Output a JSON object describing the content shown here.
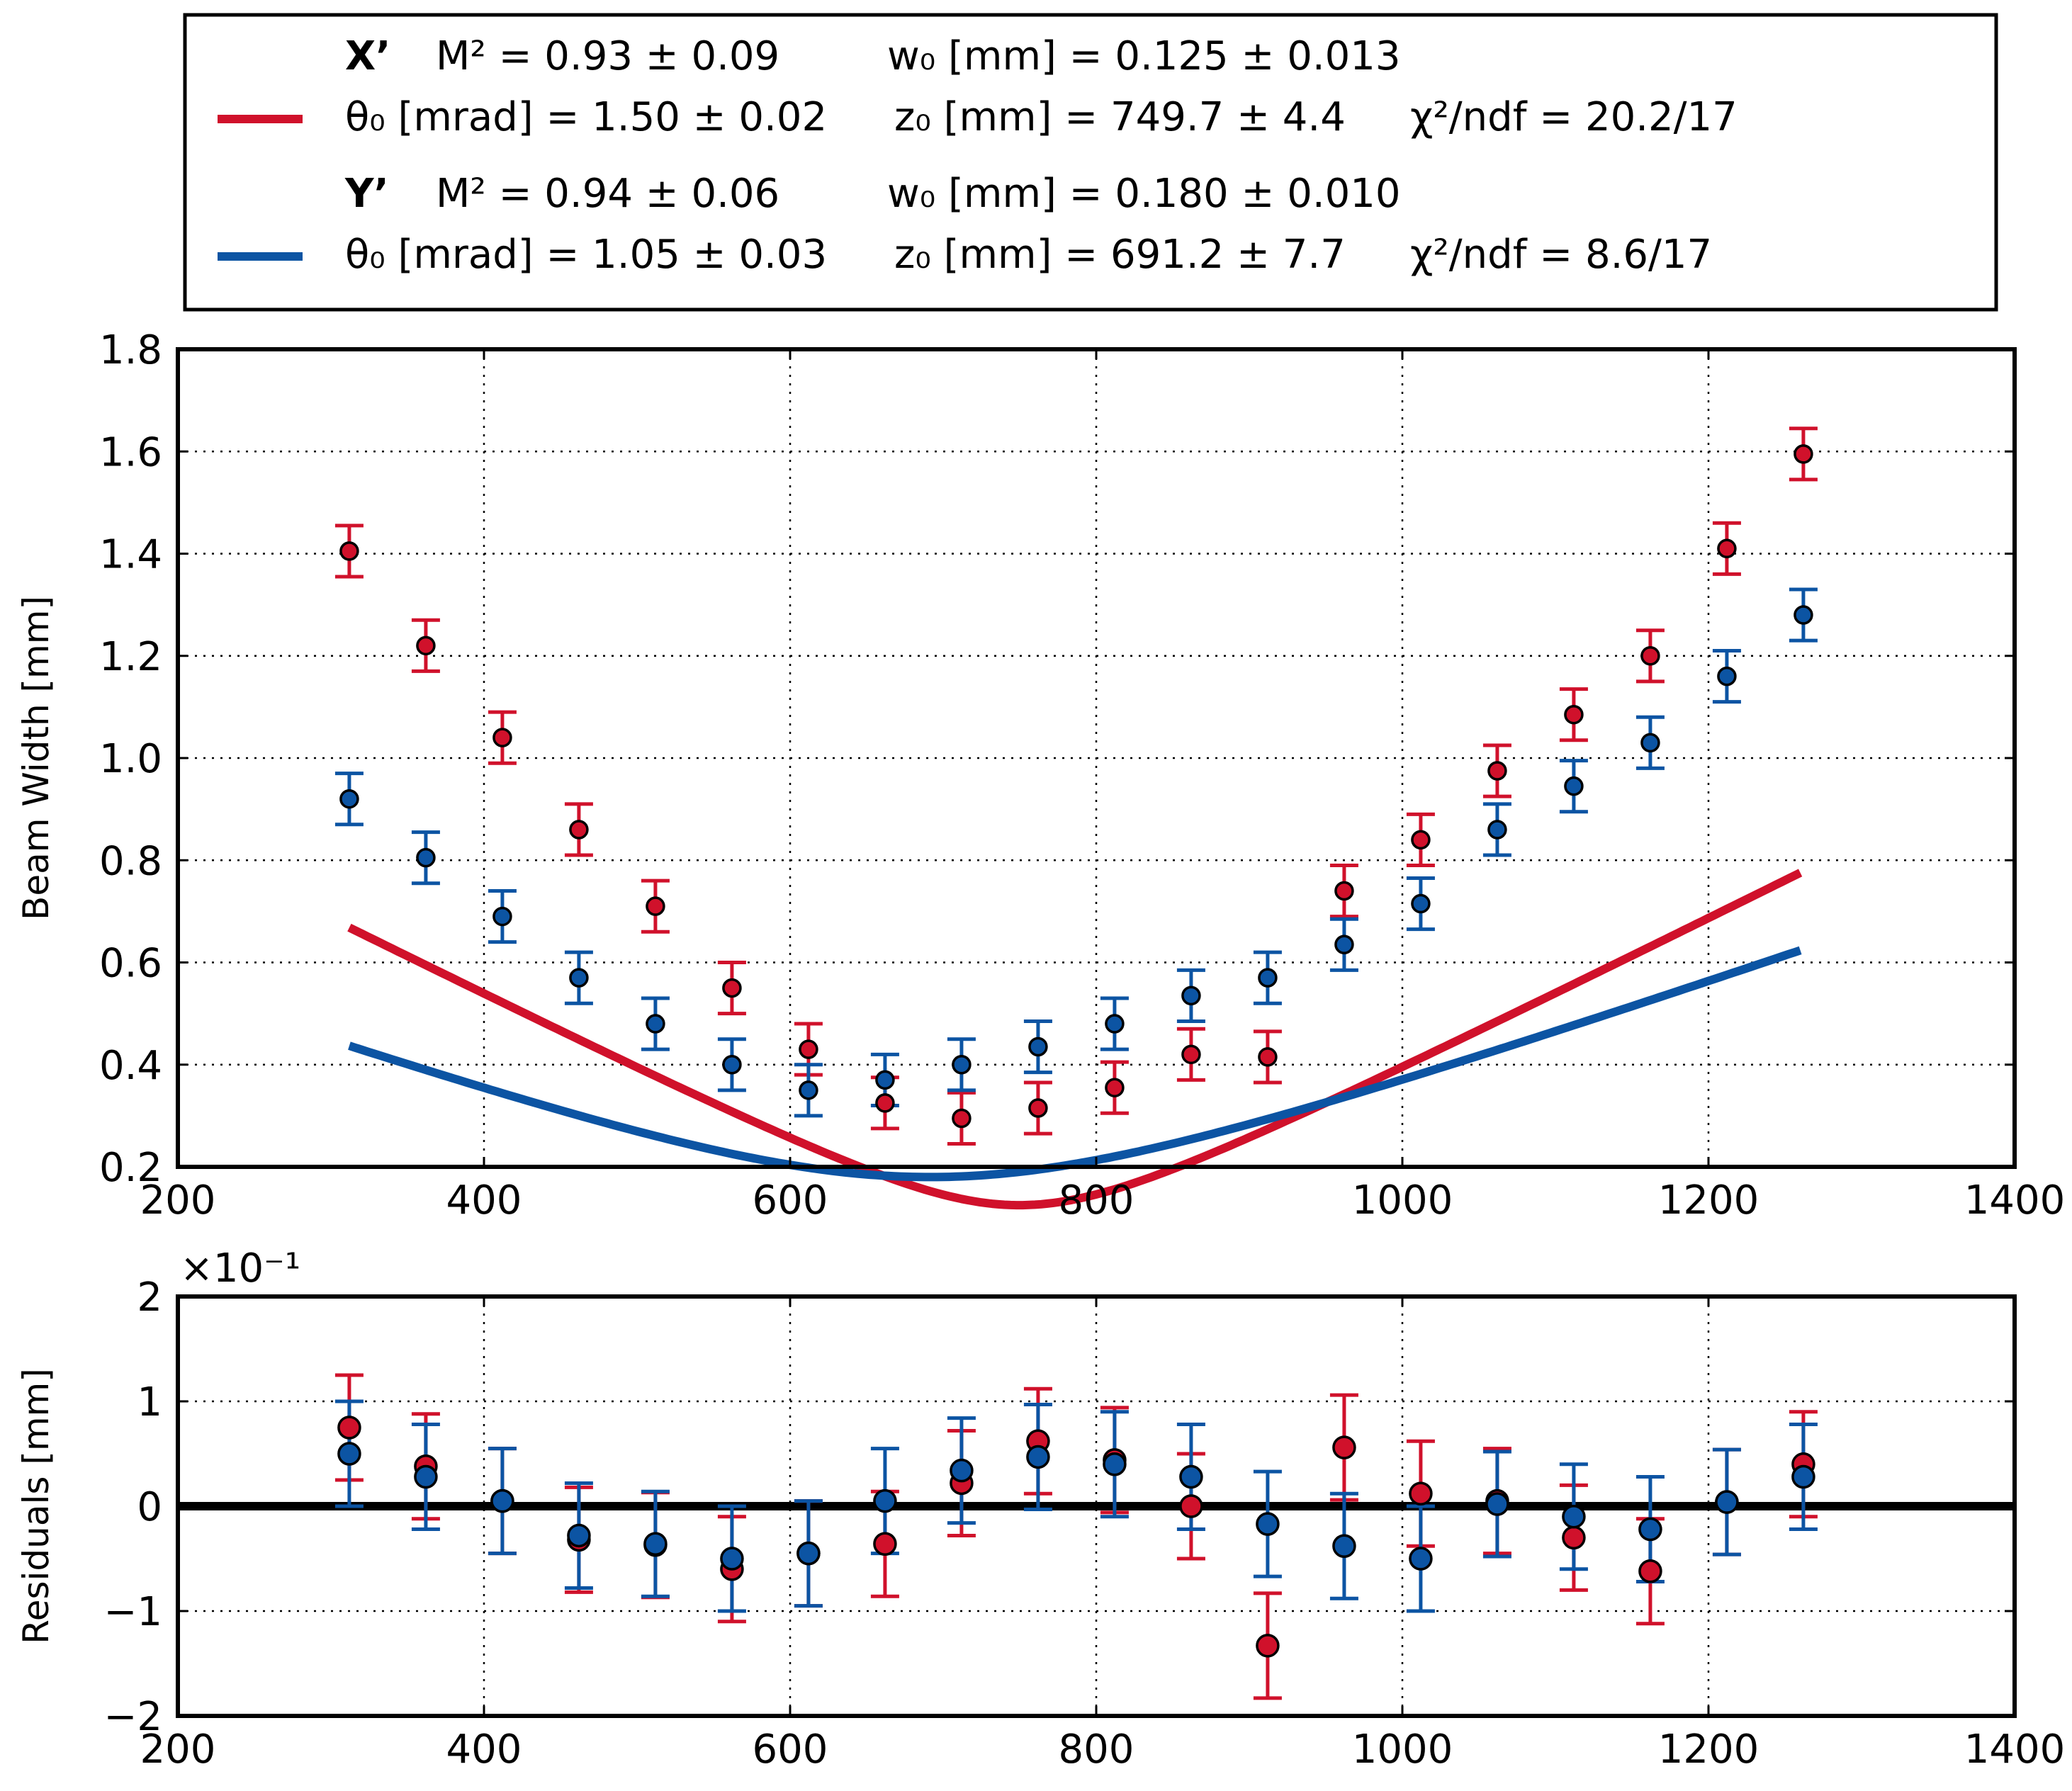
{
  "legend": {
    "x_label": "X’",
    "x_m2": "M² = 0.93 ± 0.09",
    "x_w0": "w₀ [mm] = 0.125 ± 0.013",
    "x_theta": "θ₀ [mrad] = 1.50 ± 0.02",
    "x_z0": "z₀ [mm] = 749.7 ± 4.4",
    "x_chi": "χ²/ndf = 20.2/17",
    "y_label": "Y’",
    "y_m2": "M² = 0.94 ± 0.06",
    "y_w0": "w₀ [mm] = 0.180 ± 0.010",
    "y_theta": "θ₀ [mrad] = 1.05 ± 0.03",
    "y_z0": "z₀ [mm] = 691.2 ± 7.7",
    "y_chi": "χ²/ndf = 8.6/17"
  },
  "colors": {
    "x_series": "#d0112b",
    "y_series": "#0c54a3",
    "grid": "#000000",
    "zero_line": "#000000"
  },
  "chart_data": [
    {
      "type": "scatter",
      "name": "beam-width",
      "title": "",
      "xlabel": "",
      "ylabel": "Beam Width [mm]",
      "xlim": [
        200,
        1400
      ],
      "ylim": [
        0.2,
        1.8
      ],
      "xticks": [
        200,
        400,
        600,
        800,
        1000,
        1200,
        1400
      ],
      "xtick_labels": [
        "200",
        "400",
        "600",
        "800",
        "1000",
        "1200",
        "1400"
      ],
      "yticks": [
        0.2,
        0.4,
        0.6,
        0.8,
        1.0,
        1.2,
        1.4,
        1.6,
        1.8
      ],
      "ytick_labels": [
        "0.2",
        "0.4",
        "0.6",
        "0.8",
        "1.0",
        "1.2",
        "1.4",
        "1.6",
        "1.8"
      ],
      "grid": true,
      "error": 0.05,
      "x": [
        312,
        362,
        412,
        462,
        512,
        562,
        612,
        662,
        712,
        762,
        812,
        862,
        912,
        962,
        1012,
        1062,
        1112,
        1162,
        1212,
        1262
      ],
      "series": [
        {
          "name": "X’",
          "fit": {
            "w0": 0.125,
            "z0": 749.7,
            "theta": 1.5
          },
          "values": [
            1.405,
            1.22,
            1.04,
            0.86,
            0.71,
            0.55,
            0.43,
            0.325,
            0.295,
            0.315,
            0.355,
            0.42,
            0.415,
            0.74,
            0.84,
            0.975,
            1.085,
            1.2,
            1.41,
            1.595
          ]
        },
        {
          "name": "Y’",
          "fit": {
            "w0": 0.18,
            "z0": 691.2,
            "theta": 1.05
          },
          "values": [
            0.92,
            0.805,
            0.69,
            0.57,
            0.48,
            0.4,
            0.35,
            0.37,
            0.4,
            0.435,
            0.48,
            0.535,
            0.57,
            0.635,
            0.715,
            0.86,
            0.945,
            1.03,
            1.16,
            1.28
          ]
        }
      ]
    },
    {
      "type": "scatter",
      "name": "residuals",
      "title": "",
      "xlabel": "",
      "ylabel": "Residuals [mm]",
      "offset_text": "×10⁻¹",
      "xlim": [
        200,
        1400
      ],
      "ylim": [
        -2,
        2
      ],
      "xticks": [
        200,
        400,
        600,
        800,
        1000,
        1200,
        1400
      ],
      "xtick_labels": [
        "200",
        "400",
        "600",
        "800",
        "1000",
        "1200",
        "1400"
      ],
      "yticks": [
        -2,
        -1,
        0,
        1,
        2
      ],
      "ytick_labels": [
        "−2",
        "−1",
        "0",
        "1",
        "2"
      ],
      "grid": true,
      "error": 0.5,
      "x": [
        312,
        362,
        412,
        462,
        512,
        562,
        612,
        662,
        712,
        762,
        812,
        862,
        912,
        962,
        1012,
        1062,
        1112,
        1162,
        1212,
        1262
      ],
      "series": [
        {
          "name": "X’",
          "values": [
            0.75,
            0.38,
            0.05,
            -0.32,
            -0.37,
            -0.6,
            -0.45,
            -0.36,
            0.22,
            0.62,
            0.44,
            0.0,
            -1.33,
            0.56,
            0.12,
            0.05,
            -0.3,
            -0.62,
            0.04,
            0.4
          ]
        },
        {
          "name": "Y’",
          "values": [
            0.5,
            0.28,
            0.05,
            -0.28,
            -0.36,
            -0.5,
            -0.45,
            0.05,
            0.34,
            0.47,
            0.4,
            0.28,
            -0.17,
            -0.38,
            -0.5,
            0.02,
            -0.1,
            -0.22,
            0.04,
            0.28
          ]
        }
      ]
    }
  ]
}
